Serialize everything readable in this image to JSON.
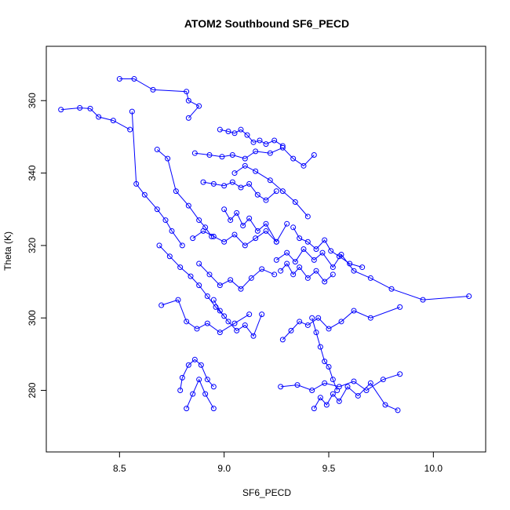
{
  "chart_data": {
    "type": "scatter",
    "title": "ATOM2 Southbound SF6_PECD",
    "xlabel": "SF6_PECD",
    "ylabel": "Theta (K)",
    "xlim": [
      8.15,
      10.25
    ],
    "ylim": [
      263,
      375
    ],
    "xticks": [
      8.5,
      9.0,
      9.5,
      10.0
    ],
    "xtick_labels": [
      "8.5",
      "9.0",
      "9.5",
      "10.0"
    ],
    "yticks": [
      280,
      300,
      320,
      340,
      360
    ],
    "ytick_labels": [
      "280",
      "300",
      "320",
      "340",
      "360"
    ],
    "grid": false,
    "legend": "none",
    "marker": "open-circle",
    "connected": true,
    "series_color": "#0000ff",
    "series": [
      {
        "x": [
          8.22,
          8.31,
          8.36,
          8.4,
          8.47,
          8.55
        ],
        "y": [
          357.5,
          358.0,
          357.8,
          355.5,
          354.5,
          352.0
        ]
      },
      {
        "x": [
          8.5,
          8.57,
          8.66,
          8.82,
          8.83,
          8.88,
          8.83
        ],
        "y": [
          366.0,
          366.0,
          363.0,
          362.5,
          360.0,
          358.5,
          355.2
        ]
      },
      {
        "x": [
          8.56,
          8.58,
          8.62,
          8.68,
          8.72,
          8.75,
          8.8
        ],
        "y": [
          357.0,
          337.0,
          334.0,
          330.0,
          327.0,
          324.0,
          320.0
        ]
      },
      {
        "x": [
          8.68,
          8.73,
          8.77,
          8.83,
          8.88,
          8.91,
          8.94
        ],
        "y": [
          346.5,
          344.0,
          335.0,
          331.0,
          327.0,
          325.0,
          322.5
        ]
      },
      {
        "x": [
          8.69,
          8.74,
          8.79,
          8.84,
          8.88,
          8.92,
          8.96,
          9.0
        ],
        "y": [
          320.0,
          317.0,
          314.0,
          311.5,
          309.0,
          306.0,
          303.0,
          300.5
        ]
      },
      {
        "x": [
          8.7,
          8.78,
          8.82,
          8.87,
          8.92,
          8.98,
          9.05,
          9.12
        ],
        "y": [
          303.5,
          305.0,
          299.0,
          297.0,
          298.5,
          296.0,
          298.5,
          301.0
        ]
      },
      {
        "x": [
          8.79,
          8.8,
          8.83,
          8.86,
          8.89,
          8.92,
          8.95
        ],
        "y": [
          280.0,
          283.5,
          287.0,
          288.5,
          287.0,
          283.0,
          281.0
        ]
      },
      {
        "x": [
          8.82,
          8.85,
          8.88,
          8.91,
          8.95
        ],
        "y": [
          275.0,
          279.0,
          283.0,
          279.0,
          275.0
        ]
      },
      {
        "x": [
          8.86,
          8.93,
          8.99,
          9.04,
          9.1,
          9.15,
          9.22,
          9.28,
          9.33,
          9.38,
          9.43
        ],
        "y": [
          345.5,
          345.0,
          344.5,
          345.0,
          344.0,
          346.0,
          345.5,
          347.0,
          344.0,
          342.0,
          345.0
        ]
      },
      {
        "x": [
          8.98,
          9.02,
          9.05,
          9.08,
          9.11,
          9.14,
          9.17,
          9.2,
          9.24,
          9.28
        ],
        "y": [
          352.0,
          351.5,
          351.0,
          352.0,
          350.5,
          348.5,
          349.0,
          348.0,
          349.0,
          347.5
        ]
      },
      {
        "x": [
          8.9,
          8.95,
          9.0,
          9.04,
          9.08,
          9.12,
          9.16,
          9.2,
          9.25
        ],
        "y": [
          337.5,
          337.0,
          336.5,
          337.5,
          336.0,
          337.0,
          334.0,
          332.5,
          335.0
        ]
      },
      {
        "x": [
          8.85,
          8.9,
          8.95,
          9.0,
          9.05,
          9.1,
          9.15,
          9.2,
          9.25,
          9.3
        ],
        "y": [
          322.0,
          324.0,
          322.5,
          321.0,
          323.0,
          320.0,
          322.0,
          324.0,
          321.0,
          326.0
        ]
      },
      {
        "x": [
          8.88,
          8.93,
          8.98,
          9.03,
          9.08,
          9.13,
          9.18,
          9.24
        ],
        "y": [
          315.0,
          312.0,
          309.0,
          310.5,
          308.0,
          311.0,
          313.5,
          312.0
        ]
      },
      {
        "x": [
          9.25,
          9.3,
          9.34,
          9.38,
          9.43,
          9.47,
          9.52,
          9.56,
          9.62,
          9.7,
          9.8,
          9.95,
          10.17
        ],
        "y": [
          316.0,
          318.0,
          315.5,
          319.0,
          316.0,
          318.0,
          314.0,
          317.5,
          313.0,
          311.0,
          308.0,
          305.0,
          306.0
        ]
      },
      {
        "x": [
          9.27,
          9.3,
          9.33,
          9.36,
          9.4,
          9.44,
          9.48,
          9.52
        ],
        "y": [
          313.0,
          315.0,
          312.0,
          314.0,
          311.0,
          313.0,
          310.0,
          312.0
        ]
      },
      {
        "x": [
          9.28,
          9.32,
          9.36,
          9.4,
          9.45,
          9.5,
          9.56,
          9.62,
          9.7,
          9.84
        ],
        "y": [
          294.0,
          296.5,
          299.0,
          298.0,
          300.0,
          297.0,
          299.0,
          302.0,
          300.0,
          303.0
        ]
      },
      {
        "x": [
          9.27,
          9.35,
          9.42,
          9.48,
          9.55,
          9.62,
          9.68,
          9.76,
          9.84
        ],
        "y": [
          281.0,
          281.5,
          280.0,
          282.0,
          281.0,
          282.5,
          280.0,
          283.0,
          284.5
        ]
      },
      {
        "x": [
          9.43,
          9.46,
          9.49,
          9.52,
          9.55,
          9.59,
          9.64,
          9.7,
          9.77,
          9.83
        ],
        "y": [
          275.0,
          278.0,
          276.0,
          279.0,
          277.0,
          281.0,
          278.5,
          282.0,
          276.0,
          274.5
        ]
      },
      {
        "x": [
          9.42,
          9.44,
          9.46,
          9.48,
          9.5,
          9.52,
          9.54
        ],
        "y": [
          300.0,
          296.0,
          292.0,
          288.0,
          286.5,
          283.0,
          280.0
        ]
      },
      {
        "x": [
          9.33,
          9.36,
          9.4,
          9.44,
          9.48,
          9.51,
          9.55,
          9.6,
          9.66
        ],
        "y": [
          325.0,
          322.0,
          321.0,
          319.0,
          321.5,
          318.5,
          317.0,
          315.0,
          314.0
        ]
      },
      {
        "x": [
          9.0,
          9.03,
          9.06,
          9.09,
          9.12,
          9.16,
          9.2,
          9.25
        ],
        "y": [
          330.0,
          327.0,
          329.0,
          325.5,
          327.5,
          324.0,
          326.0,
          321.0
        ]
      },
      {
        "x": [
          8.95,
          8.98,
          9.02,
          9.06,
          9.1,
          9.14,
          9.18
        ],
        "y": [
          305.0,
          302.0,
          299.0,
          296.5,
          298.0,
          295.0,
          301.0
        ]
      },
      {
        "x": [
          9.05,
          9.1,
          9.15,
          9.22,
          9.28,
          9.34,
          9.4
        ],
        "y": [
          340.0,
          342.0,
          340.5,
          338.0,
          335.0,
          332.0,
          328.0
        ]
      }
    ]
  }
}
